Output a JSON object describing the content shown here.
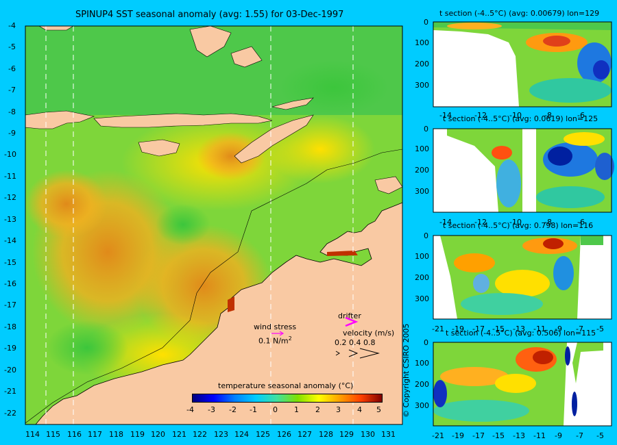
{
  "main_map": {
    "title": "SPINUP4 SST seasonal anomaly (avg: 1.55) for 03-Dec-1997",
    "lon_ticks": [
      "114",
      "115",
      "116",
      "117",
      "118",
      "119",
      "120",
      "121",
      "122",
      "123",
      "124",
      "125",
      "126",
      "127",
      "128",
      "129",
      "130",
      "131"
    ],
    "lat_ticks": [
      "-4",
      "-5",
      "-6",
      "-7",
      "-8",
      "-9",
      "-10",
      "-11",
      "-12",
      "-13",
      "-14",
      "-15",
      "-16",
      "-17",
      "-18",
      "-19",
      "-20",
      "-21",
      "-22"
    ],
    "land_color": "#f9c9a3",
    "section_lines_lon": [
      114.5,
      115.8,
      125.5,
      129.2
    ]
  },
  "legend": {
    "wind_label": "wind stress",
    "wind_scale": "0.1 N/m",
    "wind_scale_sup": "2",
    "drifter_label": "drifter",
    "velocity_label": "velocity (m/s)",
    "velocity_scale": "0.2 0.4 0.8",
    "arrow_color": "#ff00ff"
  },
  "colorbar": {
    "title": "temperature seasonal anomaly (°C)",
    "ticks": [
      "-4",
      "-3",
      "-2",
      "-1",
      "0",
      "1",
      "2",
      "3",
      "4",
      "5"
    ],
    "range": [
      -4,
      5
    ],
    "colors": [
      "#000080",
      "#0000ff",
      "#0080ff",
      "#00ccff",
      "#40e0a0",
      "#80e000",
      "#ffff00",
      "#ffa000",
      "#ff4000",
      "#800000"
    ]
  },
  "sections": [
    {
      "title": "t section (-4..5°C) (avg: 0.00679) lon=129",
      "x_ticks": [
        "-14",
        "-12",
        "-10",
        "-8",
        "-6"
      ],
      "y_ticks": [
        "0",
        "100",
        "200",
        "300"
      ]
    },
    {
      "title": "t section (-4..5°C) (avg: 0.0619) lon=125",
      "x_ticks": [
        "-14",
        "-12",
        "-10",
        "-8",
        "-6"
      ],
      "y_ticks": [
        "0",
        "100",
        "200",
        "300"
      ]
    },
    {
      "title": "t section (-4..5°C) (avg: 0.798) lon=116",
      "x_ticks": [
        "-21",
        "-19",
        "-17",
        "-15",
        "-13",
        "-11",
        "-9",
        "-7",
        "-5"
      ],
      "y_ticks": [
        "0",
        "100",
        "200",
        "300"
      ]
    },
    {
      "title": "t section (-4..5°C) (avg: 0.506) lon=115",
      "x_ticks": [
        "-21",
        "-19",
        "-17",
        "-15",
        "-13",
        "-11",
        "-9",
        "-7",
        "-5"
      ],
      "y_ticks": [
        "0",
        "100",
        "200",
        "300"
      ]
    }
  ],
  "copyright": "© Copyright CSIRO 2005"
}
